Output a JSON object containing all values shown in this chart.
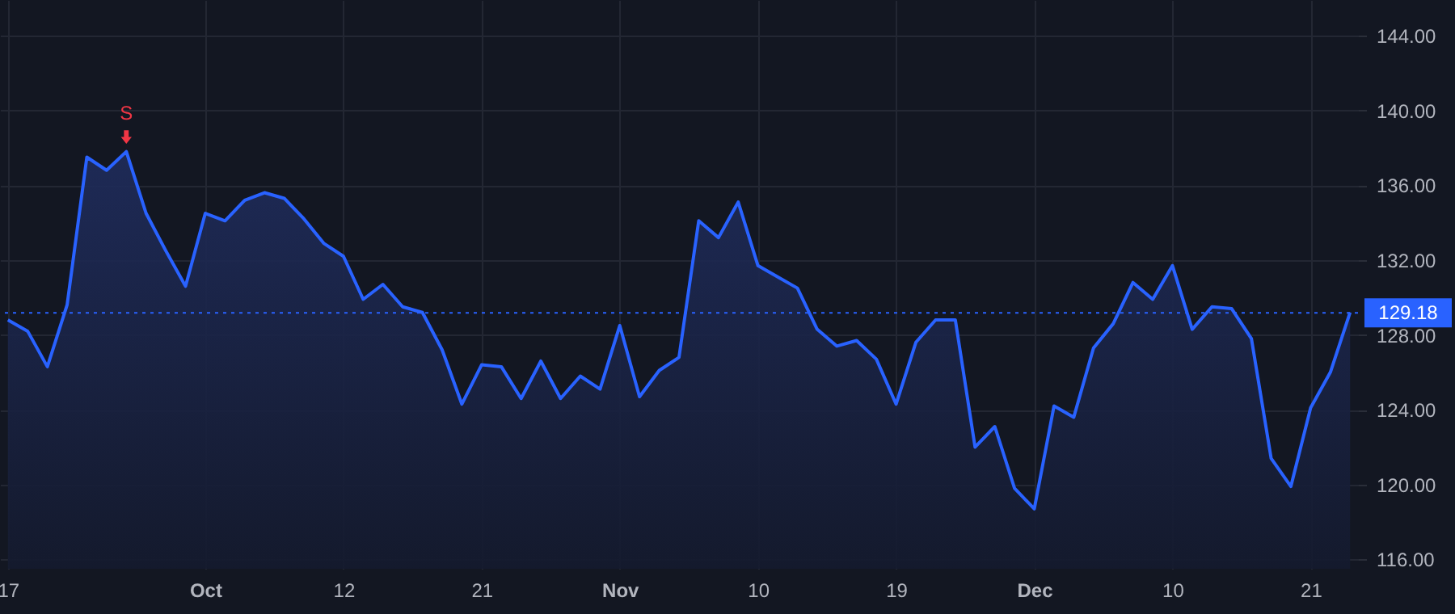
{
  "chart_data": {
    "type": "area",
    "categories": [
      "17",
      null,
      null,
      null,
      null,
      null,
      null,
      null,
      null,
      null,
      "Oct",
      null,
      null,
      null,
      null,
      null,
      null,
      "12",
      null,
      null,
      null,
      null,
      null,
      null,
      "21",
      null,
      null,
      null,
      null,
      null,
      null,
      "Nov",
      null,
      null,
      null,
      null,
      null,
      null,
      "10",
      null,
      null,
      null,
      null,
      null,
      null,
      "19",
      null,
      null,
      null,
      null,
      null,
      null,
      "Dec",
      null,
      null,
      null,
      null,
      null,
      null,
      "10",
      null,
      null,
      null,
      null,
      null,
      null,
      "21",
      null,
      null
    ],
    "series": [
      {
        "color": "#2962ff",
        "values": [
          128.8,
          128.2,
          126.3,
          129.6,
          137.5,
          136.8,
          137.8,
          134.5,
          132.5,
          130.6,
          134.5,
          134.1,
          135.2,
          135.6,
          135.3,
          134.2,
          132.9,
          132.2,
          129.9,
          130.7,
          129.5,
          129.2,
          127.2,
          124.3,
          126.4,
          126.3,
          124.6,
          126.6,
          124.6,
          125.8,
          125.1,
          128.5,
          124.7,
          126.1,
          126.8,
          134.1,
          133.2,
          135.1,
          131.7,
          131.1,
          130.5,
          128.3,
          127.4,
          127.7,
          126.7,
          124.3,
          127.6,
          128.8,
          128.8,
          122.0,
          123.1,
          119.8,
          118.7,
          124.2,
          123.6,
          127.3,
          128.6,
          130.8,
          129.9,
          131.7,
          128.3,
          129.5,
          129.4,
          127.8,
          121.4,
          119.9,
          124.1,
          126.0,
          129.2
        ]
      }
    ],
    "ylim": [
      115.5,
      145.9
    ],
    "yticks": [
      {
        "value": 116,
        "label": "116.00"
      },
      {
        "value": 120,
        "label": "120.00"
      },
      {
        "value": 124,
        "label": "124.00"
      },
      {
        "value": 128,
        "label": "128.00"
      },
      {
        "value": 132,
        "label": "132.00"
      },
      {
        "value": 136,
        "label": "136.00"
      },
      {
        "value": 140,
        "label": "140.00"
      },
      {
        "value": 144,
        "label": "144.00"
      }
    ],
    "grid": true,
    "line_style": "solid",
    "ref_lines": [
      {
        "axis": "y",
        "value": 129.18,
        "label": "129.18",
        "color": "#2962ff",
        "line_style": "dotted"
      }
    ],
    "annotations": [
      {
        "text": "S",
        "y": 137.8
      }
    ]
  }
}
